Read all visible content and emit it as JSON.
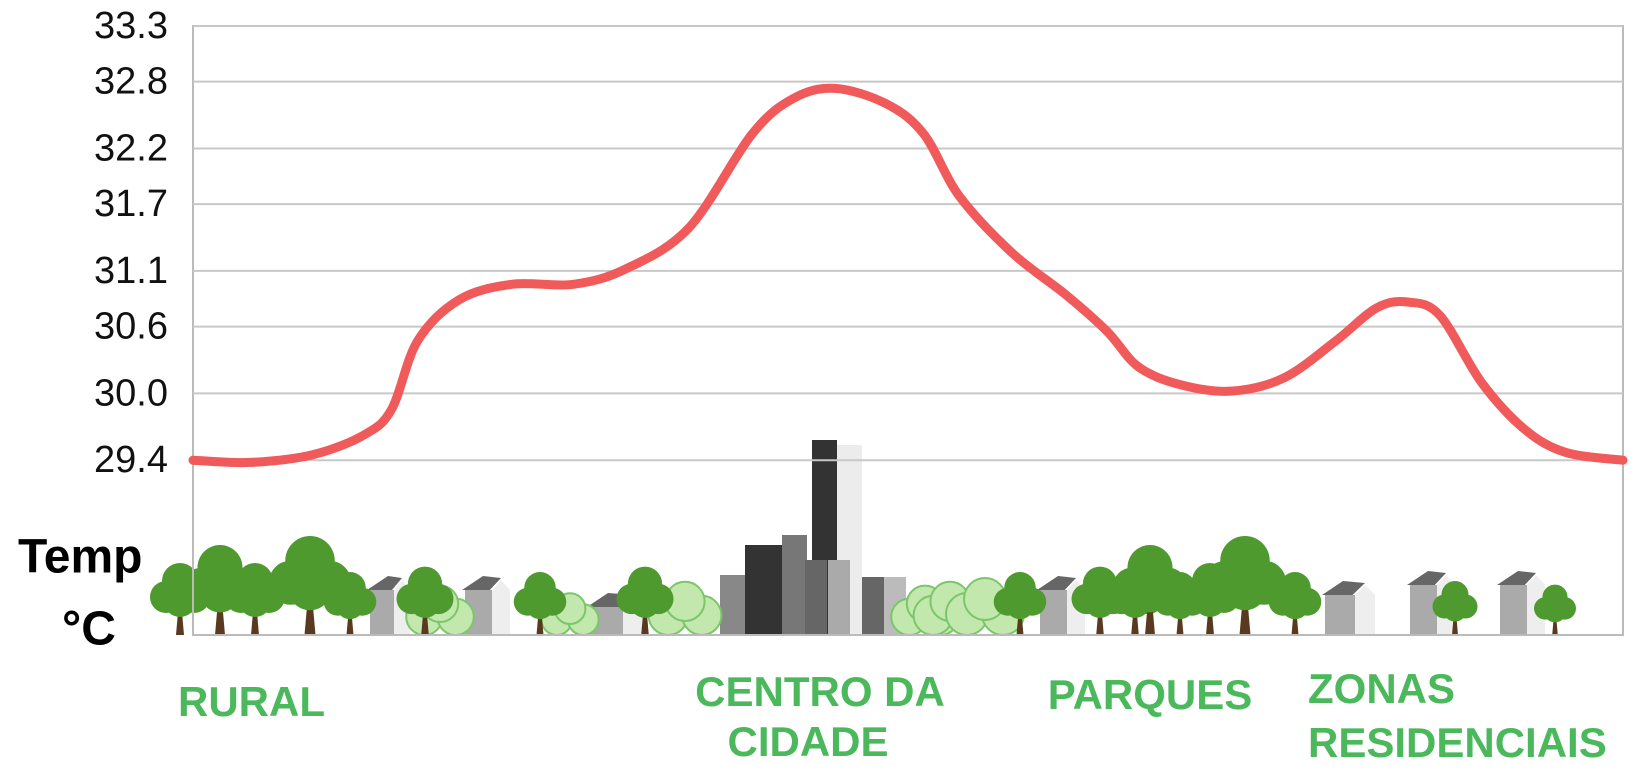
{
  "chart_data": {
    "type": "line",
    "y_label": [
      "Temp",
      "°C"
    ],
    "x": [
      0,
      4,
      8.4,
      12,
      13.9,
      15.7,
      18.6,
      22.3,
      26.6,
      30.3,
      34.7,
      39.1,
      42,
      44.9,
      48.5,
      51.1,
      53.6,
      57.3,
      61,
      63.9,
      66.1,
      69,
      72.6,
      76.3,
      79.9,
      82.8,
      85,
      87.2,
      90.1,
      93.1,
      96,
      100
    ],
    "xlim": [
      0,
      100
    ],
    "series": [
      {
        "color": "#f05a5a",
        "values": [
          29.4,
          29.38,
          29.45,
          29.63,
          29.86,
          30.47,
          30.84,
          30.98,
          30.98,
          31.12,
          31.49,
          32.33,
          32.65,
          32.74,
          32.6,
          32.33,
          31.77,
          31.26,
          30.89,
          30.56,
          30.24,
          30.08,
          30.02,
          30.14,
          30.47,
          30.77,
          30.82,
          30.7,
          30.1,
          29.68,
          29.47,
          29.4
        ]
      }
    ],
    "ylim": [
      27.83,
      33.3
    ],
    "yticks": [
      29.4,
      {
        "value": 30,
        "label": "30.0"
      },
      30.6,
      31.1,
      31.7,
      32.2,
      32.8,
      33.3
    ],
    "grid": true,
    "annotations": [
      {
        "lines": [
          "RURAL"
        ]
      },
      {
        "lines": [
          "CENTRO DA",
          "CIDADE"
        ]
      },
      {
        "lines": [
          "PARQUES"
        ]
      },
      {
        "lines": [
          "ZONAS",
          "RESIDENCIAIS"
        ]
      }
    ]
  }
}
